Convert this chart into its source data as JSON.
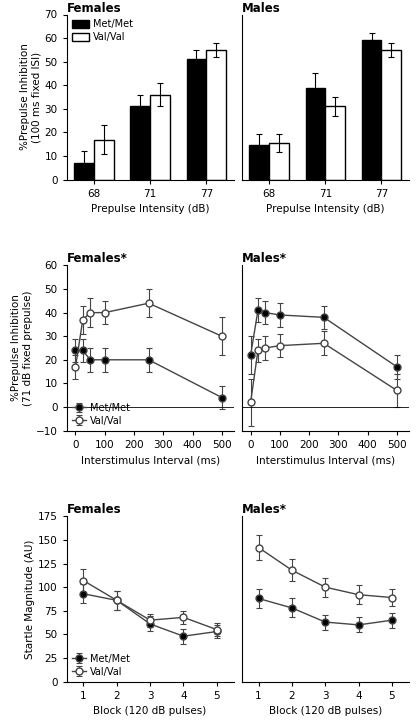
{
  "row1": {
    "females": {
      "title": "Females",
      "categories": [
        68,
        71,
        77
      ],
      "met_values": [
        7,
        31,
        51
      ],
      "val_values": [
        17,
        36,
        55
      ],
      "met_errors": [
        5,
        5,
        4
      ],
      "val_errors": [
        6,
        5,
        3
      ],
      "ylabel": "%Prepulse Inhibition\n(100 ms fixed ISI)",
      "xlabel": "Prepulse Intensity (dB)",
      "ylim": [
        0,
        70
      ],
      "yticks": [
        0,
        10,
        20,
        30,
        40,
        50,
        60,
        70
      ]
    },
    "males": {
      "title": "Males",
      "categories": [
        68,
        71,
        77
      ],
      "met_values": [
        14.5,
        39,
        59
      ],
      "val_values": [
        15.5,
        31,
        55
      ],
      "met_errors": [
        5,
        6,
        3
      ],
      "val_errors": [
        4,
        4,
        3
      ],
      "xlabel": "Prepulse Intensity (dB)",
      "ylim": [
        0,
        70
      ],
      "yticks": [
        0,
        10,
        20,
        30,
        40,
        50,
        60,
        70
      ]
    }
  },
  "row2": {
    "females": {
      "title": "Females*",
      "x": [
        0,
        25,
        50,
        100,
        250,
        500
      ],
      "met_values": [
        24,
        24,
        20,
        20,
        20,
        4
      ],
      "val_values": [
        17,
        37,
        40,
        40,
        44,
        30
      ],
      "met_errors": [
        5,
        5,
        5,
        5,
        5,
        5
      ],
      "val_errors": [
        5,
        6,
        6,
        5,
        6,
        8
      ],
      "ylabel": "%Prepulse Inhibition\n(71 dB fixed prepulse)",
      "xlabel": "Interstimulus Interval (ms)",
      "ylim": [
        -10,
        60
      ],
      "yticks": [
        -10,
        0,
        10,
        20,
        30,
        40,
        50,
        60
      ]
    },
    "males": {
      "title": "Males*",
      "x": [
        0,
        25,
        50,
        100,
        250,
        500
      ],
      "met_values": [
        22,
        41,
        40,
        39,
        38,
        17
      ],
      "val_values": [
        2,
        24,
        25,
        26,
        27,
        7
      ],
      "met_errors": [
        8,
        5,
        5,
        5,
        5,
        5
      ],
      "val_errors": [
        10,
        5,
        5,
        5,
        5,
        7
      ],
      "xlabel": "Interstimulus Interval (ms)",
      "ylim": [
        -10,
        60
      ],
      "yticks": [
        -10,
        0,
        10,
        20,
        30,
        40,
        50,
        60
      ]
    }
  },
  "row3": {
    "females": {
      "title": "Females",
      "x": [
        1,
        2,
        3,
        4,
        5
      ],
      "met_values": [
        93,
        86,
        61,
        48,
        53
      ],
      "val_values": [
        107,
        86,
        65,
        68,
        55
      ],
      "met_errors": [
        10,
        10,
        8,
        8,
        7
      ],
      "val_errors": [
        12,
        10,
        7,
        7,
        7
      ],
      "ylabel": "Startle Magnitude (AU)",
      "xlabel": "Block (120 dB pulses)",
      "ylim": [
        0,
        175
      ],
      "yticks": [
        0,
        25,
        50,
        75,
        100,
        125,
        150,
        175
      ]
    },
    "males": {
      "title": "Males*",
      "x": [
        1,
        2,
        3,
        4,
        5
      ],
      "met_values": [
        88,
        78,
        63,
        60,
        65
      ],
      "val_values": [
        142,
        118,
        100,
        92,
        89
      ],
      "met_errors": [
        10,
        10,
        8,
        8,
        8
      ],
      "val_errors": [
        13,
        12,
        10,
        10,
        9
      ],
      "xlabel": "Block (120 dB pulses)",
      "ylim": [
        0,
        175
      ],
      "yticks": [
        0,
        25,
        50,
        75,
        100,
        125,
        150,
        175
      ]
    }
  },
  "legend_bar": {
    "met_label": "Met/Met",
    "val_label": "Val/Val"
  },
  "legend_line": {
    "met_label": "Met/Met",
    "val_label": "Val/Val"
  },
  "bar_width": 0.35,
  "line_color": "#444444",
  "fontsize": 7.5,
  "title_fontsize": 8.5
}
